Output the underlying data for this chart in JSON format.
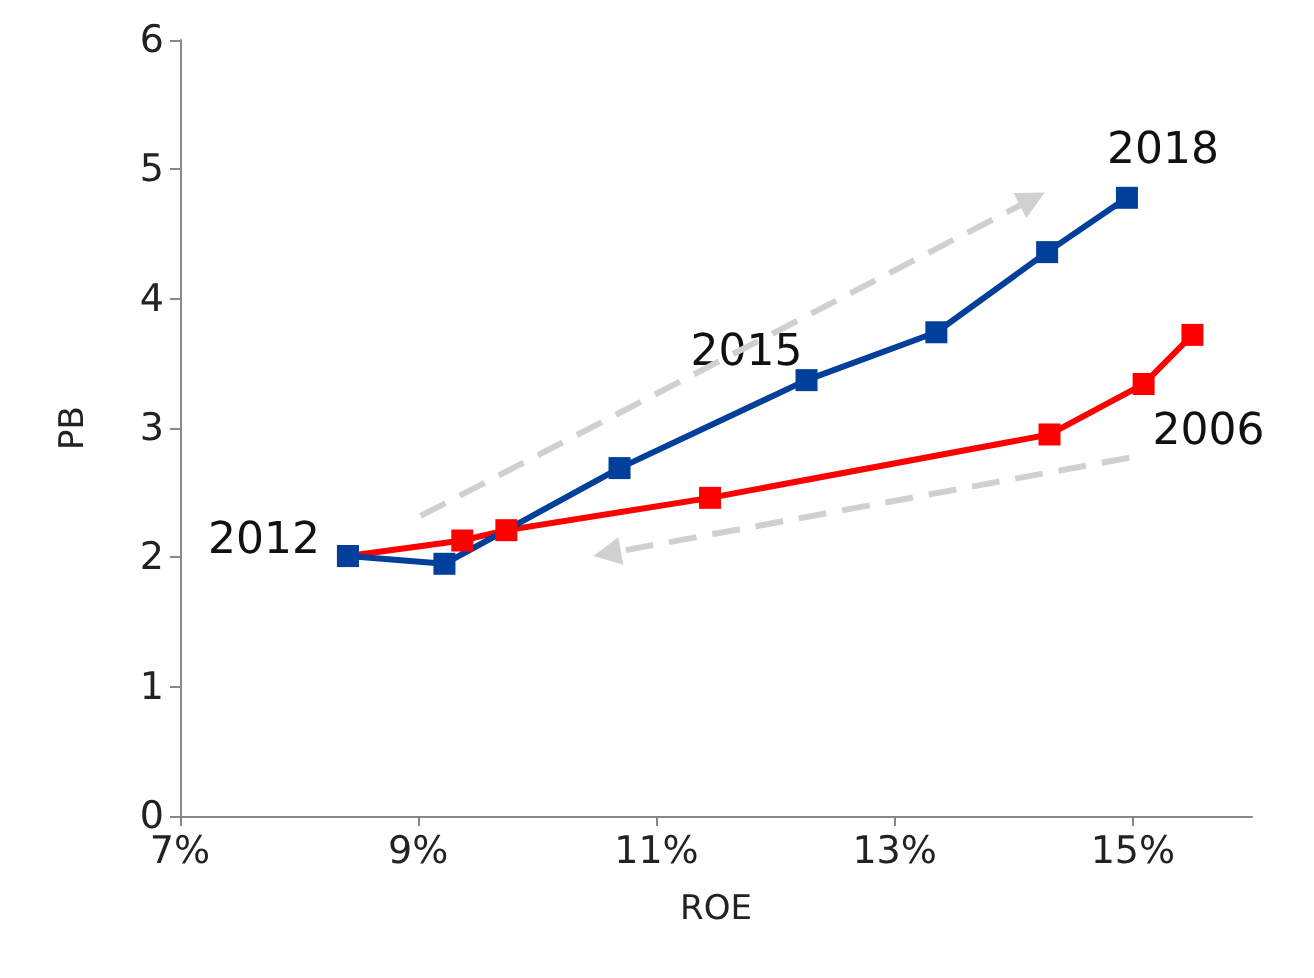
{
  "chart_data": {
    "type": "line",
    "xlabel": "ROE",
    "ylabel": "PB",
    "xlim": [
      7,
      16
    ],
    "xticks": [
      {
        "value": 7,
        "label": "7%"
      },
      {
        "value": 9,
        "label": "9%"
      },
      {
        "value": 11,
        "label": "11%"
      },
      {
        "value": 13,
        "label": "13%"
      },
      {
        "value": 15,
        "label": "15%"
      }
    ],
    "ylim": [
      0,
      6
    ],
    "yticks": [
      0,
      1,
      2,
      3,
      4,
      5,
      6
    ],
    "series": [
      {
        "color": "#ff0000",
        "x": [
          15.5,
          15.09,
          14.3,
          11.45,
          9.74,
          9.37,
          8.41
        ],
        "values": [
          3.72,
          3.34,
          2.95,
          2.46,
          2.21,
          2.13,
          2.01
        ]
      },
      {
        "color": "#003f9a",
        "x": [
          8.41,
          9.22,
          10.69,
          12.26,
          13.35,
          14.28,
          14.95
        ],
        "values": [
          2.01,
          1.95,
          2.69,
          3.37,
          3.74,
          4.36,
          4.78
        ]
      }
    ],
    "annotations": [
      {
        "text": "2012",
        "x": 8.41,
        "y": 2.01
      },
      {
        "text": "2015",
        "x": 12.26,
        "y": 3.37
      },
      {
        "text": "2018",
        "x": 14.95,
        "y": 4.78
      },
      {
        "text": "2006",
        "x": 15.5,
        "y": 3.72
      }
    ],
    "marker": "square",
    "line_style": "solid",
    "grid": false
  }
}
